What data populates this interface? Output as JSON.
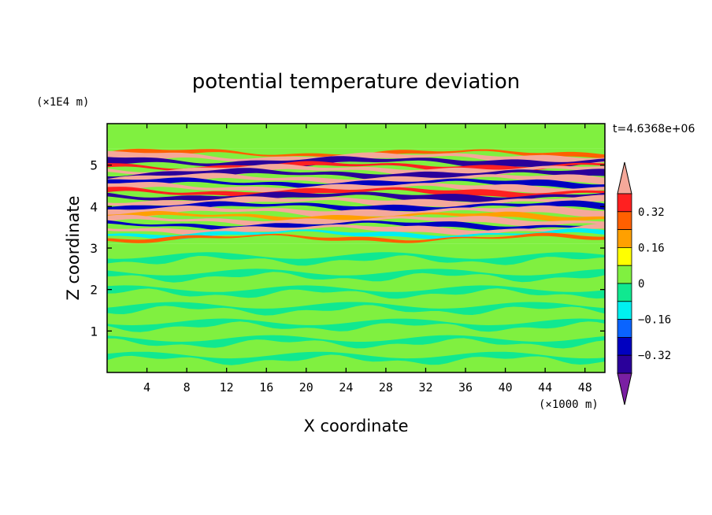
{
  "chart_data": {
    "type": "heatmap",
    "title": "potential temperature deviation",
    "xlabel": "X coordinate",
    "ylabel": "Z coordinate",
    "x_unit": "(×1000 m)",
    "y_unit": "(×1E4 m)",
    "time_label": "t=4.6368e+06",
    "xlim": [
      0,
      50
    ],
    "ylim": [
      0,
      6
    ],
    "x_ticks": [
      4,
      8,
      12,
      16,
      20,
      24,
      28,
      32,
      36,
      40,
      44,
      48
    ],
    "y_ticks": [
      1,
      2,
      3,
      4,
      5
    ],
    "colorbar": {
      "levels": [
        -0.4,
        -0.32,
        -0.24,
        -0.16,
        -0.08,
        0,
        0.08,
        0.16,
        0.24,
        0.32,
        0.4
      ],
      "tick_labels": [
        "0.32",
        "0.16",
        "0",
        "−0.16",
        "−0.32"
      ],
      "tick_values": [
        0.32,
        0.16,
        0,
        -0.16,
        -0.32
      ],
      "colors": [
        "#7a1fa2",
        "#2a009a",
        "#0000c0",
        "#0a64ff",
        "#00f0f0",
        "#10e890",
        "#80f040",
        "#ffff00",
        "#ffa000",
        "#ff6000",
        "#ff2020",
        "#f5a89a"
      ]
    },
    "regions": [
      {
        "z": [
          0,
          3.1
        ],
        "description_level": 0.04
      },
      {
        "z": [
          3.1,
          5.4
        ],
        "description_level": "alternating -0.4 to 0.4 bands"
      },
      {
        "z": [
          5.4,
          6.0
        ],
        "description_level": 0.02
      }
    ],
    "bands": [
      {
        "z": 5.28,
        "w": 0.05,
        "level": 0.24
      },
      {
        "z": 5.18,
        "w": 0.08,
        "level": 0.4
      },
      {
        "z": 5.08,
        "w": 0.08,
        "level": -0.4
      },
      {
        "z": 4.97,
        "w": 0.06,
        "level": 0.32
      },
      {
        "z": 4.88,
        "w": 0.08,
        "level": 0.4
      },
      {
        "z": 4.78,
        "w": 0.08,
        "level": -0.4
      },
      {
        "z": 4.66,
        "w": 0.08,
        "level": 0.4
      },
      {
        "z": 4.56,
        "w": 0.07,
        "level": -0.32
      },
      {
        "z": 4.45,
        "w": 0.08,
        "level": 0.4
      },
      {
        "z": 4.35,
        "w": 0.07,
        "level": 0.32
      },
      {
        "z": 4.24,
        "w": 0.08,
        "level": -0.4
      },
      {
        "z": 4.12,
        "w": 0.08,
        "level": 0.4
      },
      {
        "z": 4.0,
        "w": 0.07,
        "level": -0.32
      },
      {
        "z": 3.88,
        "w": 0.08,
        "level": 0.4
      },
      {
        "z": 3.76,
        "w": 0.06,
        "level": 0.16
      },
      {
        "z": 3.66,
        "w": 0.07,
        "level": 0.4
      },
      {
        "z": 3.55,
        "w": 0.06,
        "level": -0.32
      },
      {
        "z": 3.45,
        "w": 0.07,
        "level": 0.4
      },
      {
        "z": 3.34,
        "w": 0.05,
        "level": -0.16
      },
      {
        "z": 3.24,
        "w": 0.04,
        "level": 0.24
      }
    ]
  }
}
